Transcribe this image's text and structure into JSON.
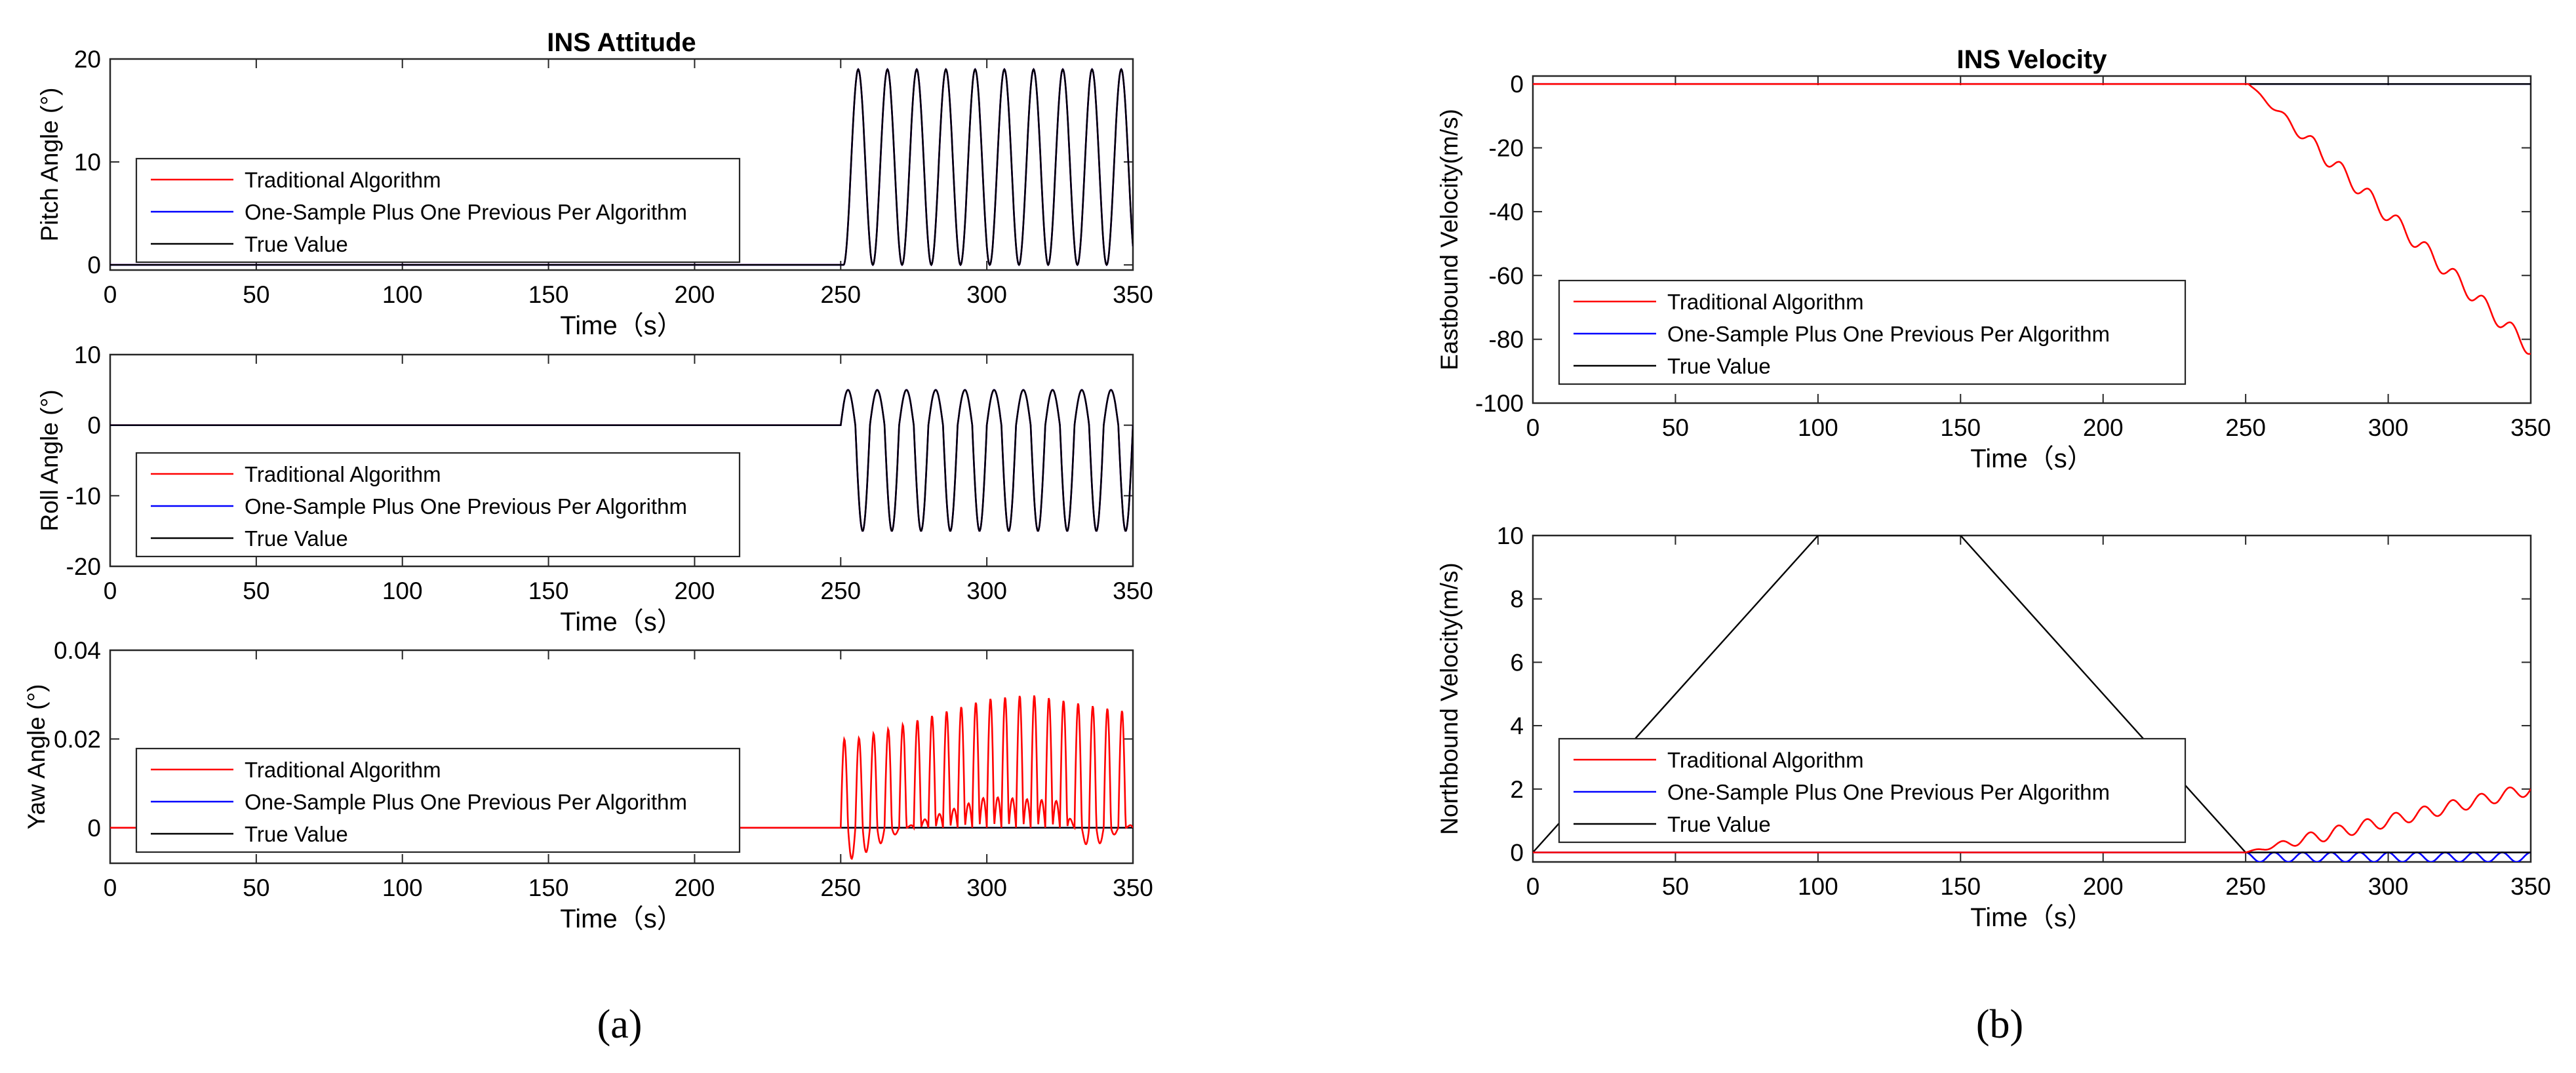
{
  "figure": {
    "panel_a_label": "(a)",
    "panel_b_label": "(b)"
  },
  "colors": {
    "traditional": "#ff0000",
    "one_sample": "#0000ff",
    "true_value": "#000000",
    "axis": "#262626",
    "text": "#000000"
  },
  "legend": {
    "entries": [
      "Traditional Algorithm",
      "One-Sample Plus One Previous Per Algorithm",
      "True Value"
    ]
  },
  "chart_data": [
    {
      "id": "pitch",
      "type": "line",
      "title": "INS Attitude",
      "xlabel": "Time（s）",
      "ylabel": "Pitch Angle (°)",
      "xlim": [
        0,
        350
      ],
      "ylim": [
        -0.5,
        20
      ],
      "xticks": [
        0,
        50,
        100,
        150,
        200,
        250,
        300,
        350
      ],
      "yticks": [
        0,
        10,
        20
      ],
      "legend_position": "left-center",
      "series": [
        {
          "name": "Traditional Algorithm",
          "key": "traditional",
          "description": "oscillation after 250 s, overlaps true value",
          "baseline": 0,
          "start": 251,
          "period": 10,
          "min": 0,
          "max": 19
        },
        {
          "name": "One-Sample Plus One Previous Per Algorithm",
          "key": "one_sample",
          "baseline": 0,
          "start": 251,
          "period": 10,
          "min": 0,
          "max": 19
        },
        {
          "name": "True Value",
          "key": "true_value",
          "baseline": 0,
          "start": 251,
          "period": 10,
          "min": 0,
          "max": 19
        }
      ]
    },
    {
      "id": "roll",
      "type": "line",
      "title": "",
      "xlabel": "Time（s）",
      "ylabel": "Roll Angle (°)",
      "xlim": [
        0,
        350
      ],
      "ylim": [
        -20,
        10
      ],
      "xticks": [
        0,
        50,
        100,
        150,
        200,
        250,
        300,
        350
      ],
      "yticks": [
        -20,
        -10,
        0,
        10
      ],
      "legend_position": "left-bottom",
      "series": [
        {
          "name": "Traditional Algorithm",
          "key": "traditional",
          "baseline": 0,
          "start": 250,
          "period": 10,
          "min": -15,
          "max": 5
        },
        {
          "name": "One-Sample Plus One Previous Per Algorithm",
          "key": "one_sample",
          "baseline": 0,
          "start": 250,
          "period": 10,
          "min": -15,
          "max": 5
        },
        {
          "name": "True Value",
          "key": "true_value",
          "baseline": 0,
          "start": 250,
          "period": 10,
          "min": -15,
          "max": 5
        }
      ]
    },
    {
      "id": "yaw",
      "type": "line",
      "title": "",
      "xlabel": "Time（s）",
      "ylabel": "Yaw Angle (°)",
      "xlim": [
        0,
        350
      ],
      "ylim": [
        -0.008,
        0.04
      ],
      "xticks": [
        0,
        50,
        100,
        150,
        200,
        250,
        300,
        350
      ],
      "yticks": [
        0,
        0.02,
        0.04
      ],
      "ytick_labels": [
        "0",
        "0.02",
        "0.04"
      ],
      "legend_position": "left-center",
      "series": [
        {
          "name": "Traditional Algorithm",
          "key": "traditional",
          "start": 250,
          "period": 5,
          "peaks": [
            [
              255,
              0.02
            ],
            [
              275,
              0.024
            ],
            [
              300,
              0.029
            ],
            [
              315,
              0.03
            ],
            [
              340,
              0.027
            ],
            [
              350,
              0.026
            ]
          ],
          "troughs": [
            [
              255,
              -0.007
            ],
            [
              275,
              0.001
            ],
            [
              300,
              0.007
            ],
            [
              325,
              0.006
            ],
            [
              335,
              -0.005
            ],
            [
              350,
              0.001
            ]
          ]
        },
        {
          "name": "One-Sample Plus One Previous Per Algorithm",
          "key": "one_sample",
          "value": 0
        },
        {
          "name": "True Value",
          "key": "true_value",
          "value": 0
        }
      ]
    },
    {
      "id": "east",
      "type": "line",
      "title": "INS Velocity",
      "xlabel": "Time（s）",
      "ylabel": "Eastbound Velocity(m/s)",
      "xlim": [
        0,
        350
      ],
      "ylim": [
        -100,
        2.5
      ],
      "xticks": [
        0,
        50,
        100,
        150,
        200,
        250,
        300,
        350
      ],
      "yticks": [
        -100,
        -80,
        -60,
        -40,
        -20,
        0
      ],
      "legend_position": "left-bottom",
      "series": [
        {
          "name": "Traditional Algorithm",
          "key": "traditional",
          "start": 251,
          "end_value": -83,
          "wiggle_period": 10,
          "wiggle_amp": 2.5
        },
        {
          "name": "One-Sample Plus One Previous Per Algorithm",
          "key": "one_sample",
          "value": 0
        },
        {
          "name": "True Value",
          "key": "true_value",
          "value": 0
        }
      ]
    },
    {
      "id": "north",
      "type": "line",
      "title": "",
      "xlabel": "Time（s）",
      "ylabel": "Northbound Velocity(m/s)",
      "xlim": [
        0,
        350
      ],
      "ylim": [
        -0.3,
        10
      ],
      "xticks": [
        0,
        50,
        100,
        150,
        200,
        250,
        300,
        350
      ],
      "yticks": [
        0,
        2,
        4,
        6,
        8,
        10
      ],
      "legend_position": "left-bottom",
      "series": [
        {
          "name": "Traditional Algorithm",
          "key": "traditional",
          "start": 250,
          "end_value": 2.0,
          "wiggle_period": 10,
          "wiggle_amp": 0.2
        },
        {
          "name": "One-Sample Plus One Previous Per Algorithm",
          "key": "one_sample",
          "start": 250,
          "period": 10,
          "min": -0.3,
          "max": 0
        },
        {
          "name": "True Value",
          "key": "true_value",
          "points": [
            [
              0,
              0
            ],
            [
              100,
              10
            ],
            [
              150,
              10
            ],
            [
              250,
              0
            ],
            [
              350,
              0
            ]
          ]
        }
      ]
    }
  ]
}
